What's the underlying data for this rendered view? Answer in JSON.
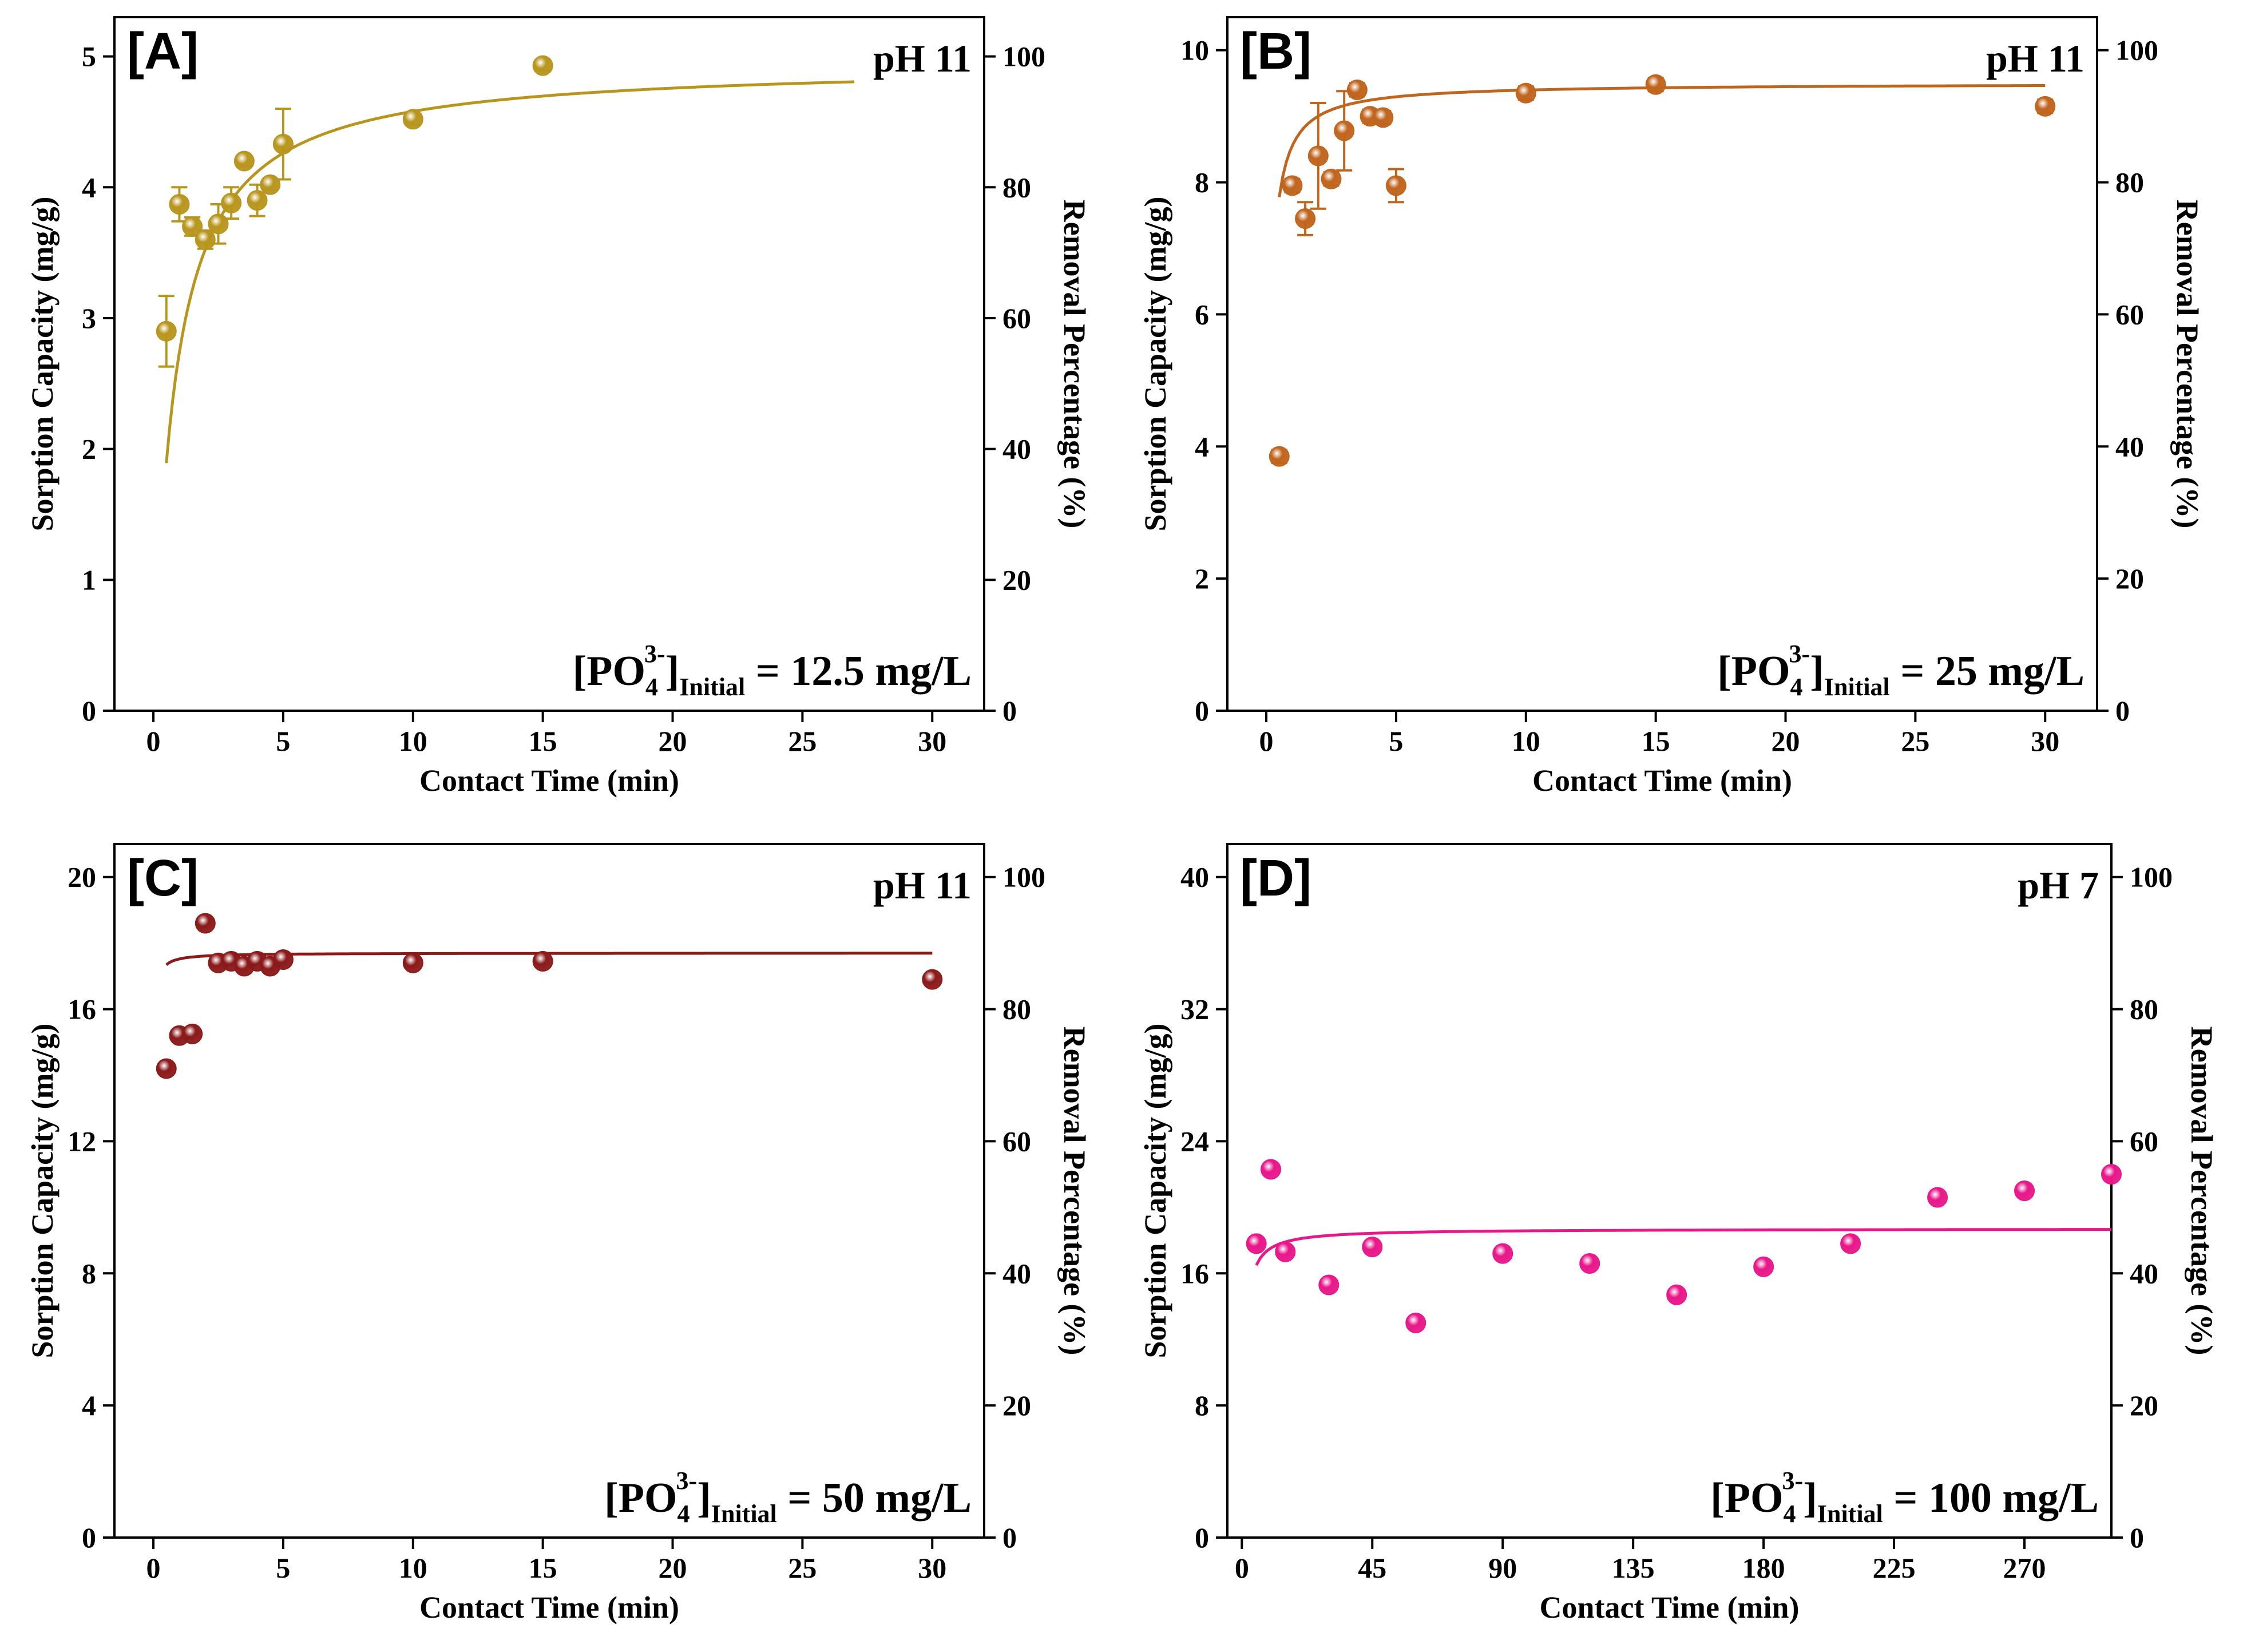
{
  "chart_data": [
    {
      "type": "scatter",
      "panel_label": "[A]",
      "condition": "pH 11",
      "concentration": {
        "species": "[PO",
        "sub": "4",
        "sup": "3-",
        "bracket": "]",
        "label_sub": "Initial",
        "value_text": " = 12.5 mg/L"
      },
      "xlabel": "Contact Time (min)",
      "ylabel": "Sorption Capacity (mg/g)",
      "y2label": "Removal Percentage (%)",
      "xlim": [
        -1.5,
        32
      ],
      "ylim": [
        0,
        5.3
      ],
      "y2lim": [
        0,
        106
      ],
      "xticks": [
        0,
        5,
        10,
        15,
        20,
        25,
        30
      ],
      "yticks": [
        0,
        1,
        2,
        3,
        4,
        5
      ],
      "y2ticks": [
        0,
        20,
        40,
        60,
        80,
        100
      ],
      "color": "#B8961E",
      "fit": {
        "qe": 4.95,
        "k": 0.25,
        "x_start": 0.5,
        "x_end": 27
      },
      "points": [
        {
          "x": 0.5,
          "y": 2.9,
          "err": 0.27
        },
        {
          "x": 1.0,
          "y": 3.87,
          "err": 0.13
        },
        {
          "x": 1.5,
          "y": 3.7,
          "err": 0.07
        },
        {
          "x": 2.0,
          "y": 3.6,
          "err": 0.07
        },
        {
          "x": 2.5,
          "y": 3.72,
          "err": 0.15
        },
        {
          "x": 3.0,
          "y": 3.88,
          "err": 0.12
        },
        {
          "x": 3.5,
          "y": 4.2,
          "err": 0.04
        },
        {
          "x": 4.0,
          "y": 3.9,
          "err": 0.12
        },
        {
          "x": 4.5,
          "y": 4.02,
          "err": 0.04
        },
        {
          "x": 5.0,
          "y": 4.33,
          "err": 0.27
        },
        {
          "x": 10.0,
          "y": 4.52,
          "err": 0.04
        },
        {
          "x": 15.0,
          "y": 4.93,
          "err": 0.04
        }
      ]
    },
    {
      "type": "scatter",
      "panel_label": "[B]",
      "condition": "pH 11",
      "concentration": {
        "species": "[PO",
        "sub": "4",
        "sup": "3-",
        "bracket": "]",
        "label_sub": "Initial",
        "value_text": " = 25 mg/L"
      },
      "xlabel": "Contact Time (min)",
      "ylabel": "Sorption Capacity (mg/g)",
      "y2label": "Removal Percentage (%)",
      "xlim": [
        -1.5,
        32
      ],
      "ylim": [
        0,
        10.5
      ],
      "y2lim": [
        0,
        105
      ],
      "xticks": [
        0,
        5,
        10,
        15,
        20,
        25,
        30
      ],
      "yticks": [
        0,
        2,
        4,
        6,
        8,
        10
      ],
      "y2ticks": [
        0,
        20,
        40,
        60,
        80,
        100
      ],
      "color": "#C0651E",
      "fit": {
        "qe": 9.5,
        "k": 0.95,
        "x_start": 0.5,
        "x_end": 30
      },
      "points": [
        {
          "x": 0.5,
          "y": 3.85,
          "err": 0.1
        },
        {
          "x": 1.0,
          "y": 7.95,
          "err": 0.1
        },
        {
          "x": 1.5,
          "y": 7.45,
          "err": 0.25
        },
        {
          "x": 2.0,
          "y": 8.4,
          "err": 0.8
        },
        {
          "x": 2.5,
          "y": 8.05,
          "err": 0.1
        },
        {
          "x": 3.0,
          "y": 8.78,
          "err": 0.6
        },
        {
          "x": 3.5,
          "y": 9.4,
          "err": 0.1
        },
        {
          "x": 4.0,
          "y": 9.0,
          "err": 0.1
        },
        {
          "x": 4.5,
          "y": 8.98,
          "err": 0.1
        },
        {
          "x": 5.0,
          "y": 7.95,
          "err": 0.25
        },
        {
          "x": 10.0,
          "y": 9.35,
          "err": 0.1
        },
        {
          "x": 15.0,
          "y": 9.48,
          "err": 0.1
        },
        {
          "x": 30.0,
          "y": 9.15,
          "err": 0.1
        }
      ]
    },
    {
      "type": "scatter",
      "panel_label": "[C]",
      "condition": "pH 11",
      "concentration": {
        "species": "[PO",
        "sub": "4",
        "sup": "3-",
        "bracket": "]",
        "label_sub": "Initial",
        "value_text": " = 50 mg/L"
      },
      "xlabel": "Contact Time (min)",
      "ylabel": "Sorption Capacity (mg/g)",
      "y2label": "Removal Percentage (%)",
      "xlim": [
        -1.5,
        32
      ],
      "ylim": [
        0,
        21
      ],
      "y2lim": [
        0,
        105
      ],
      "xticks": [
        0,
        5,
        10,
        15,
        20,
        25,
        30
      ],
      "yticks": [
        0,
        4,
        8,
        12,
        16,
        20
      ],
      "y2ticks": [
        0,
        20,
        40,
        60,
        80,
        100
      ],
      "color": "#8B1A1A",
      "fit": {
        "qe": 17.7,
        "k": 5.5,
        "x_start": 0.5,
        "x_end": 30
      },
      "points": [
        {
          "x": 0.5,
          "y": 14.2
        },
        {
          "x": 1.0,
          "y": 15.2
        },
        {
          "x": 1.5,
          "y": 15.25
        },
        {
          "x": 2.0,
          "y": 18.6
        },
        {
          "x": 2.5,
          "y": 17.4
        },
        {
          "x": 3.0,
          "y": 17.45
        },
        {
          "x": 3.5,
          "y": 17.3
        },
        {
          "x": 4.0,
          "y": 17.45
        },
        {
          "x": 4.5,
          "y": 17.3
        },
        {
          "x": 5.0,
          "y": 17.5
        },
        {
          "x": 10.0,
          "y": 17.4
        },
        {
          "x": 15.0,
          "y": 17.45
        },
        {
          "x": 30.0,
          "y": 16.9
        }
      ]
    },
    {
      "type": "scatter",
      "panel_label": "[D]",
      "condition": "pH 7",
      "concentration": {
        "species": "[PO",
        "sub": "4",
        "sup": "3-",
        "bracket": "]",
        "label_sub": "Initial",
        "value_text": " = 100 mg/L"
      },
      "xlabel": "Contact Time (min)",
      "ylabel": "Sorption Capacity (mg/g)",
      "y2label": "Removal Percentage (%)",
      "xlim": [
        -5,
        300
      ],
      "ylim": [
        0,
        42
      ],
      "y2lim": [
        0,
        105
      ],
      "xticks": [
        0,
        45,
        90,
        135,
        180,
        225,
        270
      ],
      "yticks": [
        0,
        8,
        16,
        24,
        32,
        40
      ],
      "y2ticks": [
        0,
        20,
        40,
        60,
        80,
        100
      ],
      "color": "#E8178A",
      "fit": {
        "qe": 18.7,
        "k": 0.08,
        "x_start": 5,
        "x_end": 300
      },
      "points": [
        {
          "x": 5,
          "y": 17.8
        },
        {
          "x": 10,
          "y": 22.3
        },
        {
          "x": 15,
          "y": 17.3
        },
        {
          "x": 30,
          "y": 15.3
        },
        {
          "x": 45,
          "y": 17.6
        },
        {
          "x": 60,
          "y": 13.0
        },
        {
          "x": 90,
          "y": 17.2
        },
        {
          "x": 120,
          "y": 16.6
        },
        {
          "x": 150,
          "y": 14.7
        },
        {
          "x": 180,
          "y": 16.4
        },
        {
          "x": 210,
          "y": 17.8
        },
        {
          "x": 240,
          "y": 20.6
        },
        {
          "x": 270,
          "y": 21.0
        },
        {
          "x": 300,
          "y": 22.0
        }
      ]
    }
  ]
}
